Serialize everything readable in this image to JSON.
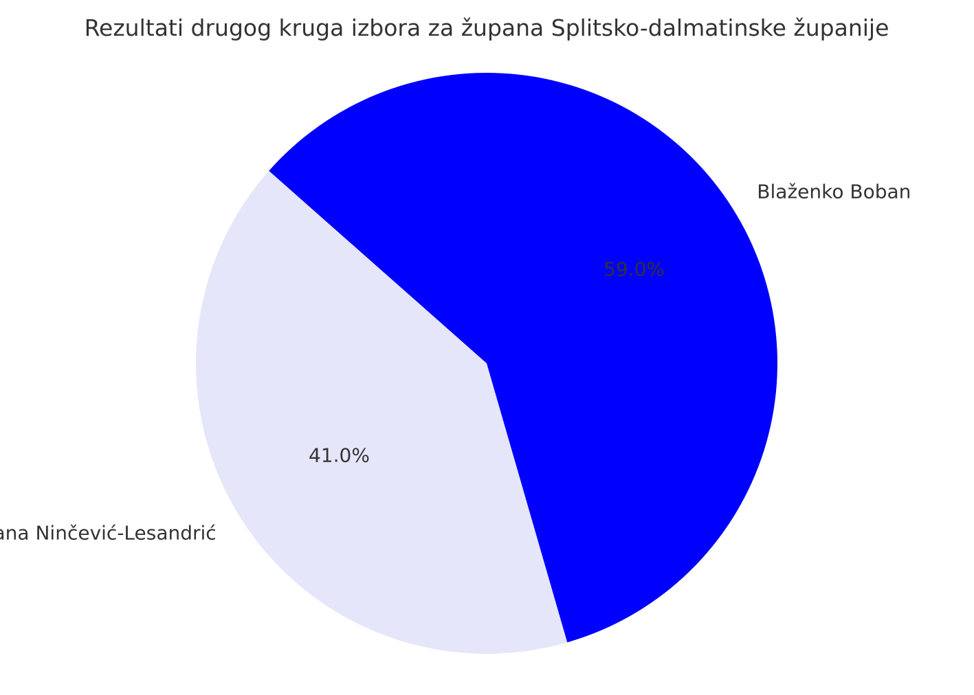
{
  "chart_data": {
    "type": "pie",
    "title": "Rezultati drugog kruga izbora za župana Splitsko-dalmatinske županije",
    "categories": [
      "Ivana Ninčević-Lesandrić",
      "Blaženko Boban"
    ],
    "values": [
      41.0,
      59.0
    ],
    "value_labels": [
      "41.0%",
      "59.0%"
    ],
    "colors": [
      "#e6e6fa",
      "#0000ff"
    ],
    "legend": "none"
  }
}
